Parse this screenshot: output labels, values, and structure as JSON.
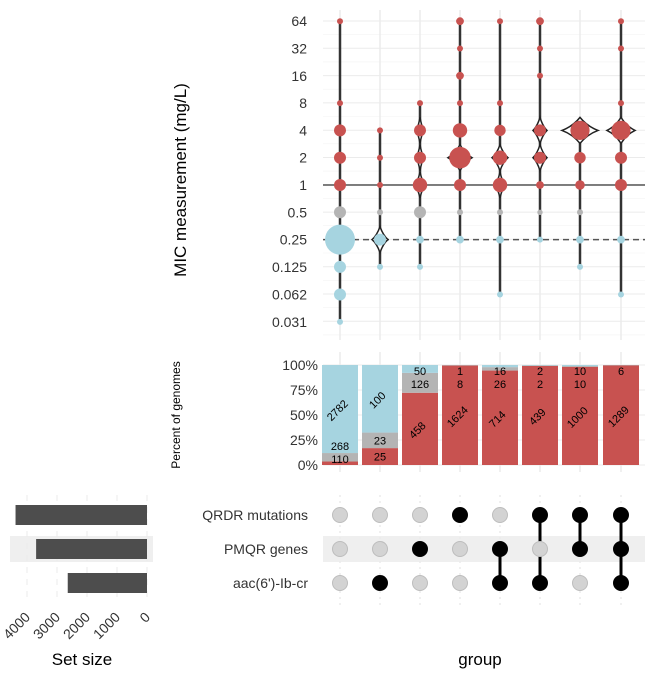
{
  "chart_data": [
    {
      "type": "scatter",
      "ylabel": "MIC measurement (mg/L)",
      "yscale": "log2",
      "yticks": [
        "64",
        "32",
        "16",
        "8",
        "4",
        "2",
        "1",
        "0.5",
        "0.25",
        "0.125",
        "0.062",
        "0.031"
      ],
      "ytick_values": [
        64,
        32,
        16,
        8,
        4,
        2,
        1,
        0.5,
        0.25,
        0.125,
        0.062,
        0.031
      ],
      "reference_lines": [
        {
          "value": 1,
          "style": "solid"
        },
        {
          "value": 0.25,
          "style": "dashed"
        }
      ],
      "colors": {
        "resistant": "#c85250",
        "intermediate": "#b4b4b4",
        "susceptible": "#a6d4e0"
      },
      "groups": [
        {
          "points": [
            [
              64,
              1
            ],
            [
              8,
              1
            ],
            [
              4,
              2
            ],
            [
              2,
              2
            ],
            [
              1,
              2
            ],
            [
              0.5,
              2
            ],
            [
              0.25,
              5
            ],
            [
              0.125,
              2
            ],
            [
              0.062,
              2
            ],
            [
              0.031,
              1
            ]
          ],
          "violin": [
            [
              0.25,
              14
            ]
          ]
        },
        {
          "points": [
            [
              4,
              1
            ],
            [
              2,
              1
            ],
            [
              1,
              1
            ],
            [
              0.5,
              1
            ],
            [
              0.25,
              2
            ],
            [
              0.125,
              1
            ]
          ],
          "violin": [
            [
              0.25,
              8
            ]
          ]
        },
        {
          "points": [
            [
              8,
              1
            ],
            [
              4,
              2
            ],
            [
              2,
              2
            ],
            [
              1,
              2.4
            ],
            [
              0.5,
              2
            ],
            [
              0.25,
              1.3
            ],
            [
              0.125,
              1
            ]
          ],
          "violin": [
            [
              4,
              4
            ],
            [
              2,
              4
            ],
            [
              1,
              5
            ]
          ]
        },
        {
          "points": [
            [
              64,
              1.3
            ],
            [
              32,
              1
            ],
            [
              16,
              1.3
            ],
            [
              8,
              1
            ],
            [
              4,
              2.4
            ],
            [
              2,
              3.6
            ],
            [
              1,
              2
            ],
            [
              0.5,
              1
            ],
            [
              0.25,
              1.3
            ]
          ],
          "violin": [
            [
              2,
              12
            ]
          ]
        },
        {
          "points": [
            [
              64,
              1
            ],
            [
              8,
              1
            ],
            [
              4,
              1.9
            ],
            [
              2,
              2.4
            ],
            [
              1,
              2.4
            ],
            [
              0.5,
              1
            ],
            [
              0.25,
              1.3
            ],
            [
              0.062,
              1
            ]
          ],
          "violin": [
            [
              2,
              8
            ],
            [
              1,
              5
            ]
          ]
        },
        {
          "points": [
            [
              64,
              1.3
            ],
            [
              32,
              1
            ],
            [
              16,
              1
            ],
            [
              4,
              2
            ],
            [
              2,
              2
            ],
            [
              1,
              1.3
            ],
            [
              0.5,
              0.9
            ],
            [
              0.25,
              1
            ]
          ],
          "violin": [
            [
              4,
              7
            ],
            [
              2,
              7
            ]
          ]
        },
        {
          "points": [
            [
              4,
              3.2
            ],
            [
              2,
              1.9
            ],
            [
              1,
              1.6
            ],
            [
              0.5,
              1
            ],
            [
              0.25,
              1.3
            ],
            [
              0.125,
              1
            ]
          ],
          "violin": [
            [
              4,
              18
            ]
          ]
        },
        {
          "points": [
            [
              64,
              1
            ],
            [
              32,
              1
            ],
            [
              8,
              1
            ],
            [
              4,
              3.2
            ],
            [
              2,
              2
            ],
            [
              1,
              2
            ],
            [
              0.25,
              1.3
            ],
            [
              0.062,
              1
            ]
          ],
          "violin": [
            [
              4,
              14
            ]
          ]
        }
      ]
    },
    {
      "type": "bar",
      "stacked": true,
      "ylabel": "Percent of genomes",
      "yticks": [
        "100%",
        "75%",
        "50%",
        "25%",
        "0%"
      ],
      "series_colors": [
        "#c85250",
        "#b4b4b4",
        "#a6d4e0"
      ],
      "counts": [
        [
          110,
          268,
          2782
        ],
        [
          25,
          23,
          100
        ],
        [
          458,
          126,
          50
        ],
        [
          1624,
          8,
          1
        ],
        [
          714,
          26,
          16
        ],
        [
          439,
          2,
          2
        ],
        [
          1000,
          10,
          10
        ],
        [
          1289,
          6,
          0
        ]
      ],
      "xlabel": "group"
    },
    {
      "type": "bar",
      "orientation": "horizontal",
      "xlabel": "Set size",
      "xticks": [
        "4000",
        "3000",
        "2000",
        "1000",
        "0"
      ],
      "sets": [
        "QRDR mutations",
        "PMQR genes",
        "aac(6')-Ib-cr"
      ],
      "values": [
        4382,
        3696,
        2642
      ],
      "membership": [
        [
          0,
          0,
          0
        ],
        [
          0,
          0,
          1
        ],
        [
          0,
          1,
          0
        ],
        [
          1,
          0,
          0
        ],
        [
          0,
          1,
          1
        ],
        [
          1,
          0,
          1
        ],
        [
          1,
          1,
          0
        ],
        [
          1,
          1,
          1
        ]
      ]
    }
  ]
}
